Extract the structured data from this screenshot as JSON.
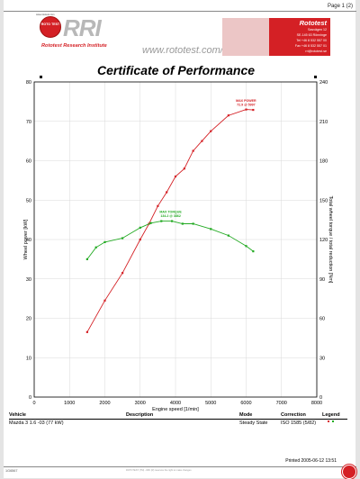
{
  "page_number": "Page 1 (2)",
  "header": {
    "tiny_text": "www.rototest.com",
    "logo_ball_text": "ROTO TEST",
    "logo_text": "RRI",
    "logo_subtitle": "Rototest Research Institute",
    "website": "www.rototest.com/rri",
    "banner_name": "Rototest",
    "banner_lines": [
      "Sasvägen 12",
      "SE-145 63 Rönninge",
      "Tel +46 8 532 557 00",
      "Fax +46 8 532 557 01",
      "rri@rototest.se"
    ]
  },
  "colors": {
    "power": "#d42025",
    "torque": "#22aa22",
    "grid": "#d8d8d8",
    "brand": "#d42025"
  },
  "chart_data": {
    "type": "line",
    "title": "Certificate of Performance",
    "xlabel": "Engine speed [1/min]",
    "ylabel_left": "Wheel power [kW]",
    "ylabel_right": "Total wheel torque / total reduction [Nm]",
    "xlim": [
      0,
      8000
    ],
    "ylim_left": [
      0,
      80
    ],
    "ylim_right": [
      0,
      240
    ],
    "x_ticks": [
      0,
      1000,
      2000,
      3000,
      4000,
      5000,
      6000,
      7000,
      8000
    ],
    "y_ticks_left": [
      0,
      10,
      20,
      30,
      40,
      50,
      60,
      70,
      80
    ],
    "y_ticks_right": [
      0,
      30,
      60,
      90,
      120,
      150,
      180,
      210,
      240
    ],
    "grid": true,
    "series": [
      {
        "axis": "left",
        "color": "#d42025",
        "points": [
          [
            1500,
            16.5
          ],
          [
            2000,
            24.5
          ],
          [
            2500,
            31.5
          ],
          [
            3000,
            40
          ],
          [
            3250,
            44
          ],
          [
            3500,
            48.5
          ],
          [
            3750,
            52
          ],
          [
            4000,
            56
          ],
          [
            4250,
            58
          ],
          [
            4500,
            62.5
          ],
          [
            4750,
            65
          ],
          [
            5000,
            67.5
          ],
          [
            5500,
            71.5
          ],
          [
            6000,
            73
          ],
          [
            6200,
            72.9
          ]
        ]
      },
      {
        "axis": "right",
        "color": "#22aa22",
        "points": [
          [
            1500,
            105
          ],
          [
            1750,
            114
          ],
          [
            2000,
            118
          ],
          [
            2500,
            121
          ],
          [
            3000,
            129
          ],
          [
            3300,
            132.5
          ],
          [
            3600,
            134
          ],
          [
            3900,
            134
          ],
          [
            4200,
            132
          ],
          [
            4500,
            132
          ],
          [
            5000,
            128
          ],
          [
            5500,
            123
          ],
          [
            6000,
            115
          ],
          [
            6200,
            111
          ]
        ]
      }
    ],
    "annotations": [
      {
        "series": 0,
        "line1": "MAX POWER",
        "line2": "72.9 @ 5997",
        "x": 5997,
        "y": 72.9
      },
      {
        "series": 1,
        "line1": "MAX TORQUE",
        "line2": "134.2 @ 3862",
        "x": 3862,
        "y": 134.2
      }
    ]
  },
  "table": {
    "headers": {
      "vehicle": "Vehicle",
      "description": "Description",
      "mode": "Mode",
      "correction": "Correction",
      "legend": "Legend"
    },
    "row": {
      "vehicle": "Mazda 3 1.6 -03 (77 kW)",
      "description": "",
      "mode": "Steady State",
      "correction": "ISO 1585 (5/82)"
    }
  },
  "footer": {
    "printed": "Printed 2005-06-12 13:51",
    "id": "1G6567",
    "copyright": "ROTOTEST (TM) - RRI (R) reserves the right to make changes"
  }
}
